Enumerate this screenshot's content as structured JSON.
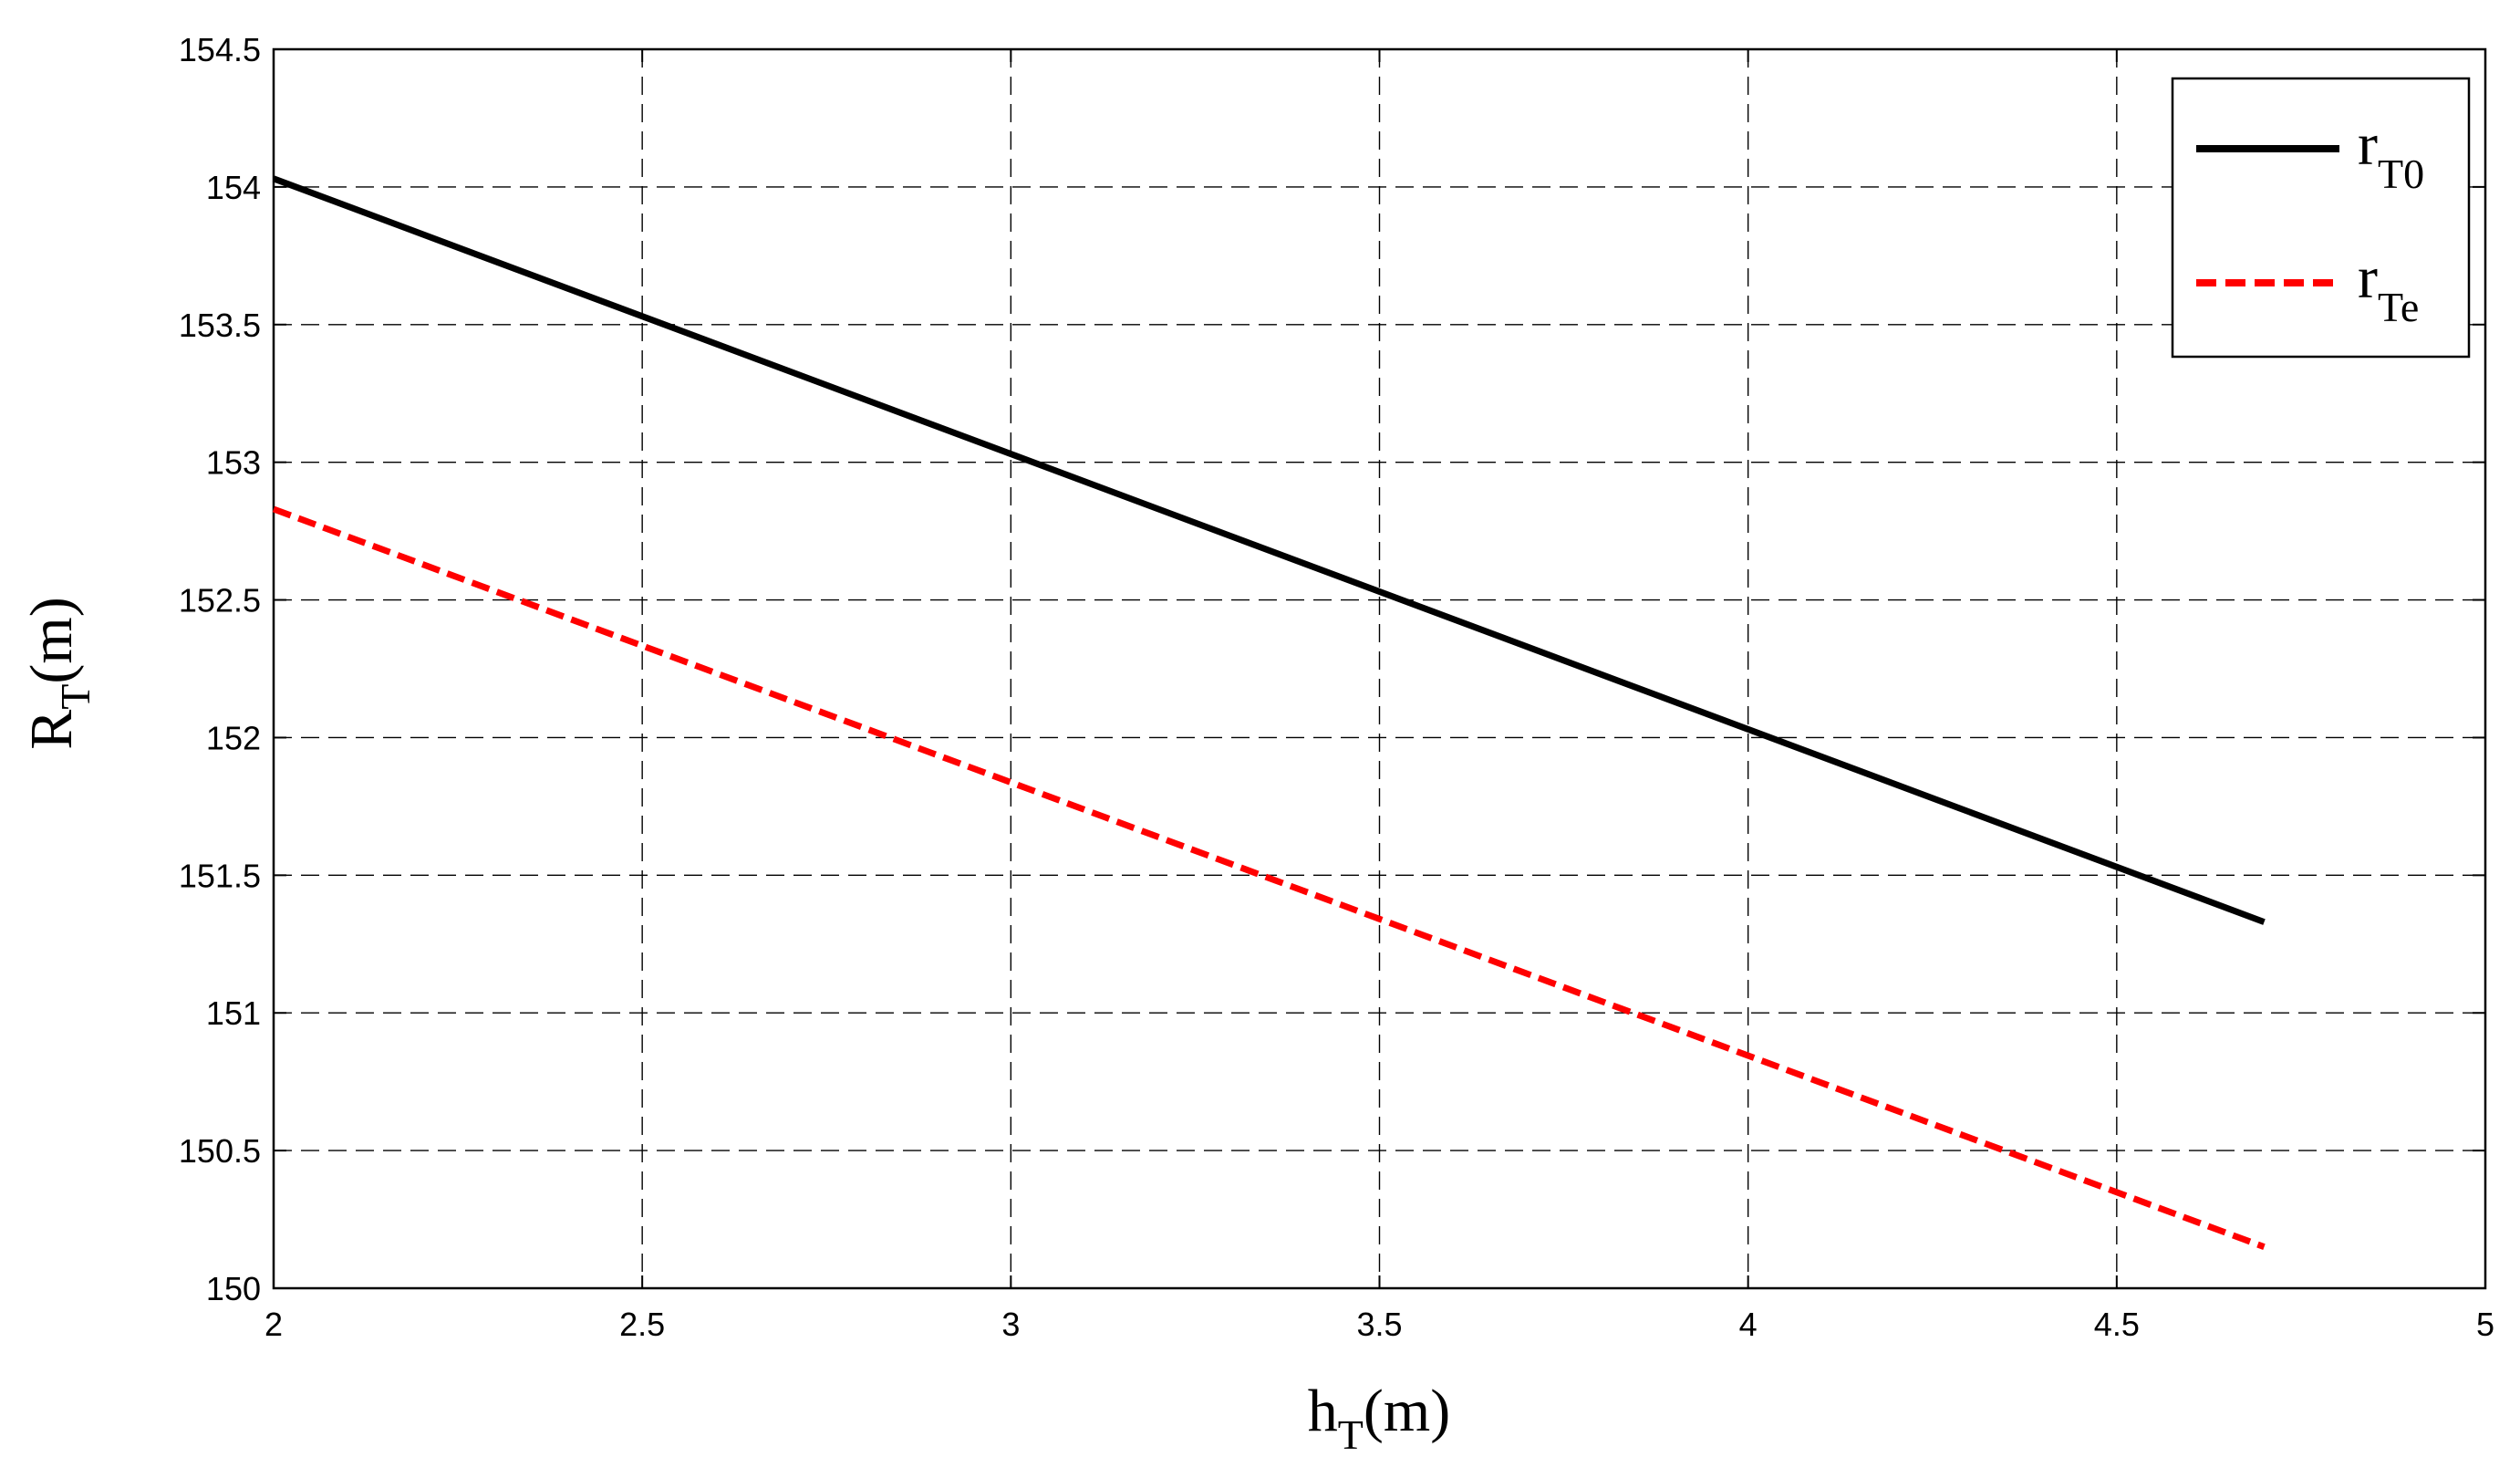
{
  "chart_data": {
    "type": "line",
    "xlabel": {
      "main": "h",
      "sub": "T",
      "unit": "(m)"
    },
    "ylabel": {
      "main": "R",
      "sub": "T",
      "unit": "(m)"
    },
    "xlim": [
      2,
      5
    ],
    "ylim": [
      150,
      154.5
    ],
    "xticks": [
      2,
      2.5,
      3,
      3.5,
      4,
      4.5,
      5
    ],
    "xtick_labels": [
      "2",
      "2.5",
      "3",
      "3.5",
      "4",
      "4.5",
      "5"
    ],
    "yticks": [
      150,
      150.5,
      151,
      151.5,
      152,
      152.5,
      153,
      153.5,
      154,
      154.5
    ],
    "ytick_labels": [
      "150",
      "150.5",
      "151",
      "151.5",
      "152",
      "152.5",
      "153",
      "153.5",
      "154",
      "154.5"
    ],
    "grid": true,
    "legend_position": "top-right",
    "series": [
      {
        "name_main": "r",
        "name_sub": "T0",
        "color": "#000000",
        "style": "solid",
        "x": [
          2,
          4.7
        ],
        "y": [
          154.03,
          151.33
        ]
      },
      {
        "name_main": "r",
        "name_sub": "Te",
        "color": "#ff0000",
        "style": "dashed",
        "x": [
          2,
          4.7
        ],
        "y": [
          152.83,
          150.15
        ]
      }
    ]
  }
}
